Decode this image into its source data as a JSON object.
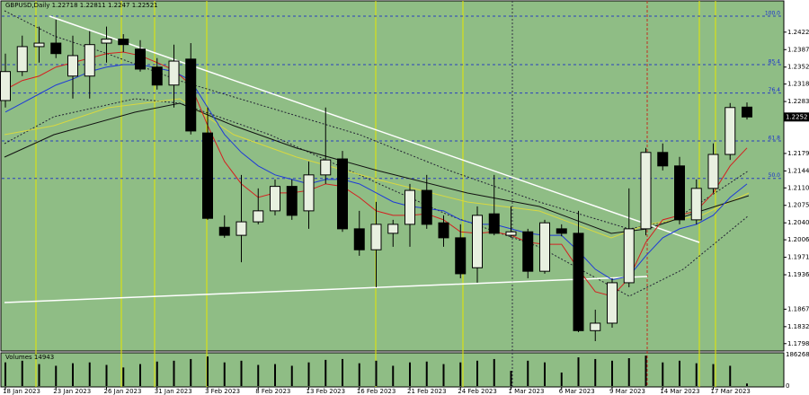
{
  "chart_data": {
    "type": "candlestick",
    "symbol": "GBPUSD,Daily",
    "ylim": [
      1.2472,
      1.1785
    ],
    "yticks": [
      {
        "value": 1.2422,
        "label": "1.2422"
      },
      {
        "value": 1.2387,
        "label": "1.2387"
      },
      {
        "value": 1.2352,
        "label": "1.2352"
      },
      {
        "value": 1.2318,
        "label": "1.2318"
      },
      {
        "value": 1.2283,
        "label": "1.2283"
      },
      {
        "value": 1.2179,
        "label": "1.2179"
      },
      {
        "value": 1.2144,
        "label": "1.2144"
      },
      {
        "value": 1.211,
        "label": "1.2110"
      },
      {
        "value": 1.2075,
        "label": "1.2075"
      },
      {
        "value": 1.204,
        "label": "1.2040"
      },
      {
        "value": 1.2006,
        "label": "1.2006"
      },
      {
        "value": 1.1971,
        "label": "1.1971"
      },
      {
        "value": 1.1936,
        "label": "1.1936"
      },
      {
        "value": 1.1867,
        "label": "1.1867"
      },
      {
        "value": 1.1832,
        "label": "1.1832"
      },
      {
        "value": 1.1798,
        "label": "1.1798"
      }
    ],
    "last_price": 1.2252,
    "xticks": [
      {
        "value": 0,
        "label": "18 Jan 2023"
      },
      {
        "value": 3,
        "label": "23 Jan 2023"
      },
      {
        "value": 6,
        "label": "26 Jan 2023"
      },
      {
        "value": 9,
        "label": "31 Jan 2023"
      },
      {
        "value": 12,
        "label": "3 Feb 2023"
      },
      {
        "value": 15,
        "label": "8 Feb 2023"
      },
      {
        "value": 18,
        "label": "13 Feb 2023"
      },
      {
        "value": 21,
        "label": "16 Feb 2023"
      },
      {
        "value": 24,
        "label": "21 Feb 2023"
      },
      {
        "value": 27,
        "label": "24 Feb 2023"
      },
      {
        "value": 30,
        "label": "1 Mar 2023"
      },
      {
        "value": 33,
        "label": "6 Mar 2023"
      },
      {
        "value": 36,
        "label": "9 Mar 2023"
      },
      {
        "value": 39,
        "label": "14 Mar 2023"
      },
      {
        "value": 42,
        "label": "17 Mar 2023"
      }
    ],
    "up_color": "#e8f0e0",
    "down_color": "#000000",
    "ohlc": [
      [
        1.2285,
        1.2379,
        1.2271,
        1.2343
      ],
      [
        1.2343,
        1.2415,
        1.2334,
        1.2393
      ],
      [
        1.2393,
        1.2433,
        1.2361,
        1.24
      ],
      [
        1.24,
        1.2447,
        1.237,
        1.2379
      ],
      [
        1.2334,
        1.2415,
        1.2289,
        1.2375
      ],
      [
        1.2334,
        1.2424,
        1.2289,
        1.2397
      ],
      [
        1.24,
        1.2433,
        1.2361,
        1.2408
      ],
      [
        1.2408,
        1.2418,
        1.2382,
        1.2397
      ],
      [
        1.2388,
        1.2406,
        1.2343,
        1.2348
      ],
      [
        1.2352,
        1.237,
        1.2307,
        1.2316
      ],
      [
        1.2316,
        1.2397,
        1.2271,
        1.2364
      ],
      [
        1.2368,
        1.24,
        1.2217,
        1.2224
      ],
      [
        1.222,
        1.2271,
        1.2046,
        1.2049
      ],
      [
        1.2031,
        1.2055,
        1.201,
        1.2015
      ],
      [
        1.2015,
        1.2136,
        1.1961,
        1.2042
      ],
      [
        1.2042,
        1.2109,
        1.2037,
        1.2064
      ],
      [
        1.2064,
        1.2127,
        1.2055,
        1.2113
      ],
      [
        1.2113,
        1.2127,
        1.2046,
        1.2055
      ],
      [
        1.2064,
        1.2163,
        1.2028,
        1.2136
      ],
      [
        1.2136,
        1.2271,
        1.2118,
        1.2166
      ],
      [
        1.2168,
        1.2184,
        1.2022,
        1.2028
      ],
      [
        1.2028,
        1.2064,
        1.1974,
        1.1986
      ],
      [
        1.1986,
        1.2082,
        1.1911,
        1.2037
      ],
      [
        1.2019,
        1.2046,
        1.1992,
        1.2037
      ],
      [
        1.2037,
        1.2118,
        1.1992,
        1.2105
      ],
      [
        1.2105,
        1.2136,
        1.2028,
        1.2037
      ],
      [
        1.204,
        1.2055,
        1.1992,
        1.201
      ],
      [
        1.201,
        1.2037,
        1.1929,
        1.1938
      ],
      [
        1.195,
        1.2073,
        1.192,
        1.2055
      ],
      [
        1.2058,
        1.2136,
        1.2015,
        1.2019
      ],
      [
        1.2015,
        1.2073,
        1.201,
        1.2022
      ],
      [
        1.2022,
        1.2028,
        1.1929,
        1.1943
      ],
      [
        1.1943,
        1.2046,
        1.1938,
        1.204
      ],
      [
        1.2028,
        1.2037,
        1.2013,
        1.2019
      ],
      [
        1.2019,
        1.2064,
        1.1821,
        1.1824
      ],
      [
        1.1824,
        1.1866,
        1.1803,
        1.1839
      ],
      [
        1.1839,
        1.1929,
        1.183,
        1.192
      ],
      [
        1.192,
        1.2109,
        1.1911,
        1.2028
      ],
      [
        1.2028,
        1.219,
        1.2015,
        1.2181
      ],
      [
        1.2181,
        1.2199,
        1.2145,
        1.2154
      ],
      [
        1.2154,
        1.2172,
        1.2037,
        1.2046
      ],
      [
        1.2046,
        1.2127,
        1.2037,
        1.2109
      ],
      [
        1.2109,
        1.2199,
        1.21,
        1.2177
      ],
      [
        1.2177,
        1.228,
        1.2166,
        1.2271
      ],
      [
        1.22718,
        1.22811,
        1.2247,
        1.22521
      ]
    ],
    "series": [
      {
        "color": "#d42020",
        "values": [
          1.2307,
          1.2325,
          1.2334,
          1.2352,
          1.2361,
          1.237,
          1.2379,
          1.2382,
          1.2375,
          1.2361,
          1.2346,
          1.2316,
          1.2235,
          1.2163,
          1.2118,
          1.2091,
          1.21,
          1.21,
          1.2105,
          1.2118,
          1.2113,
          1.2091,
          1.2064,
          1.2055,
          1.2055,
          1.2058,
          1.2046,
          1.2022,
          1.2019,
          1.2022,
          1.2015,
          1.2001,
          1.1997,
          1.1997,
          1.1947,
          1.1902,
          1.1893,
          1.1929,
          1.2001,
          1.2046,
          1.2055,
          1.2064,
          1.21,
          1.2154,
          1.219
        ]
      },
      {
        "color": "#1e3ad8",
        "values": [
          1.2262,
          1.228,
          1.2298,
          1.2316,
          1.2328,
          1.2343,
          1.2352,
          1.2357,
          1.2357,
          1.235,
          1.2343,
          1.2325,
          1.2271,
          1.2217,
          1.2181,
          1.2154,
          1.2136,
          1.2127,
          1.2118,
          1.2127,
          1.2127,
          1.2118,
          1.21,
          1.2082,
          1.2073,
          1.2069,
          1.2064,
          1.2046,
          1.2037,
          1.2037,
          1.2028,
          1.2019,
          1.2015,
          1.2015,
          1.1983,
          1.1947,
          1.1926,
          1.1933,
          1.1974,
          1.201,
          1.2028,
          1.2037,
          1.2055,
          1.2091,
          1.2118
        ]
      }
    ],
    "fib_levels": [
      {
        "label": "100.0",
        "price": 1.2454
      },
      {
        "label": "85.4",
        "price": 1.2357
      },
      {
        "label": "76.4",
        "price": 1.23
      },
      {
        "label": "61.8",
        "price": 1.2204
      },
      {
        "label": "50.0",
        "price": 1.2129
      }
    ],
    "volume_title": "Volumes",
    "vlim": [
      0,
      186268
    ],
    "vticks": [
      186268,
      0
    ],
    "volumes": [
      140000,
      150000,
      130000,
      120000,
      135000,
      140000,
      125000,
      110000,
      130000,
      145000,
      150000,
      160000,
      175000,
      140000,
      150000,
      125000,
      130000,
      120000,
      140000,
      155000,
      160000,
      135000,
      150000,
      120000,
      140000,
      145000,
      130000,
      140000,
      150000,
      160000,
      90000,
      150000,
      140000,
      80000,
      170000,
      160000,
      150000,
      165000,
      180000,
      140000,
      150000,
      135000,
      130000,
      120000,
      14943
    ]
  }
}
